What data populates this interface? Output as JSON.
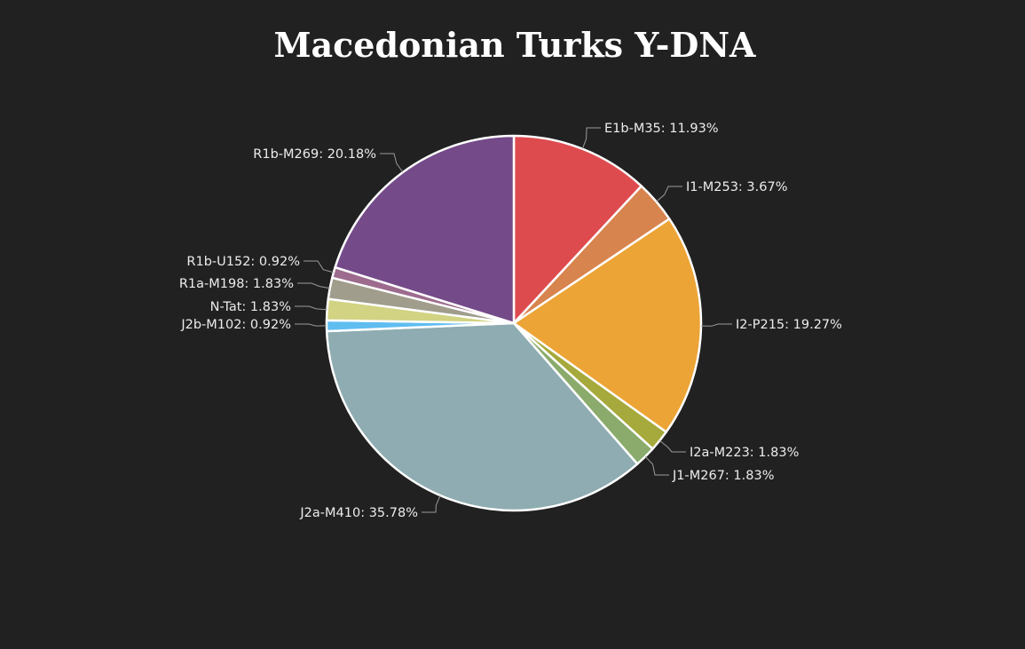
{
  "chart_data": {
    "type": "pie",
    "title": "Macedonian Turks Y-DNA",
    "start_angle_deg": 0,
    "direction": "clockwise",
    "slices": [
      {
        "label": "E1b-M35: 11.93%",
        "value": 11.93,
        "color": "#de4b4f"
      },
      {
        "label": "I1-M253: 3.67%",
        "value": 3.67,
        "color": "#d8844e"
      },
      {
        "label": "I2-P215: 19.27%",
        "value": 19.27,
        "color": "#eca436"
      },
      {
        "label": "I2a-M223: 1.83%",
        "value": 1.83,
        "color": "#a6a93b"
      },
      {
        "label": "J1-M267: 1.83%",
        "value": 1.83,
        "color": "#8aab6b"
      },
      {
        "label": "J2a-M410: 35.78%",
        "value": 35.78,
        "color": "#8eacb1"
      },
      {
        "label": "J2b-M102: 0.92%",
        "value": 0.92,
        "color": "#5fbdf0"
      },
      {
        "label": "N-Tat: 1.83%",
        "value": 1.83,
        "color": "#d2d383"
      },
      {
        "label": "R1a-M198: 1.83%",
        "value": 1.83,
        "color": "#a09d8d"
      },
      {
        "label": "R1b-U152: 0.92%",
        "value": 0.92,
        "color": "#9c6b8e"
      },
      {
        "label": "R1b-M269: 20.18%",
        "value": 20.18,
        "color": "#744a89"
      }
    ]
  }
}
